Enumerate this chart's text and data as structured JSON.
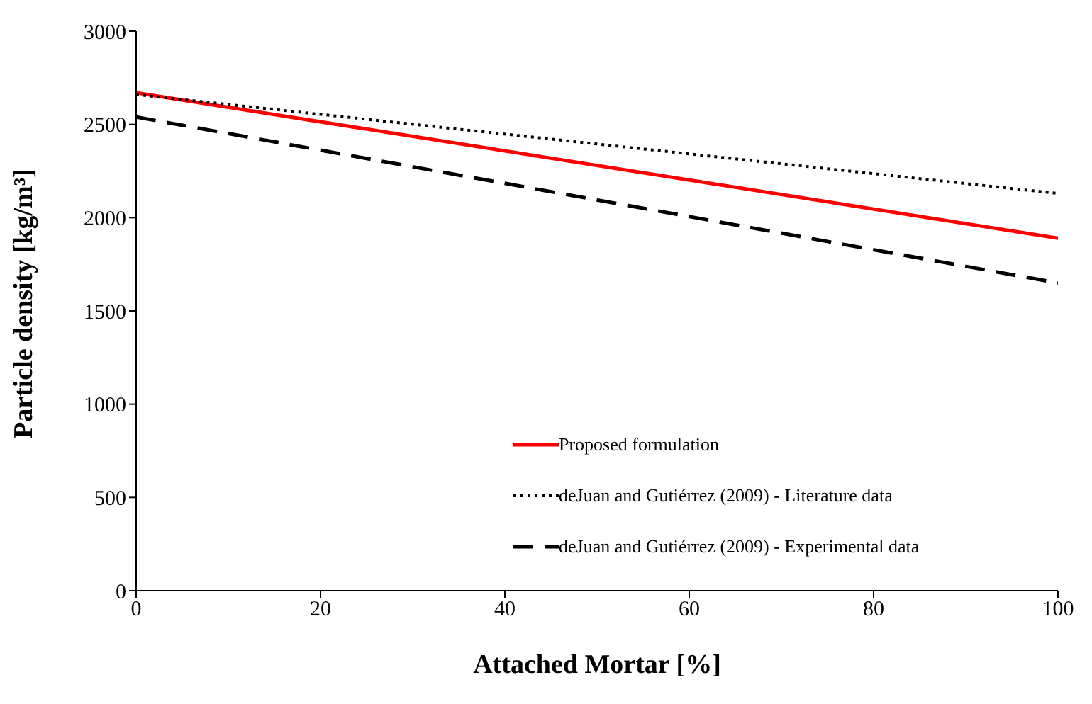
{
  "chart_data": {
    "type": "line",
    "xlabel": "Attached Mortar [%]",
    "ylabel": "Particle density [kg/m³]",
    "x": [
      0,
      100
    ],
    "series": [
      {
        "name": "Proposed formulation",
        "color": "#ff0000",
        "values": [
          2670,
          1890
        ],
        "line_style": "solid"
      },
      {
        "name": "deJuan and Gutiérrez (2009) - Literature data",
        "color": "#000000",
        "values": [
          2660,
          2130
        ],
        "line_style": "dotted"
      },
      {
        "name": "deJuan and Gutiérrez (2009) - Experimental data",
        "color": "#000000",
        "values": [
          2540,
          1650
        ],
        "line_style": "dashed"
      }
    ],
    "xlim": [
      0,
      100
    ],
    "xticks": [
      0,
      20,
      40,
      60,
      80,
      100
    ],
    "ylim": [
      0,
      3000
    ],
    "yticks": [
      0,
      500,
      1000,
      1500,
      2000,
      2500,
      3000
    ],
    "grid": false,
    "legend": "bottom right",
    "marker": "none"
  }
}
